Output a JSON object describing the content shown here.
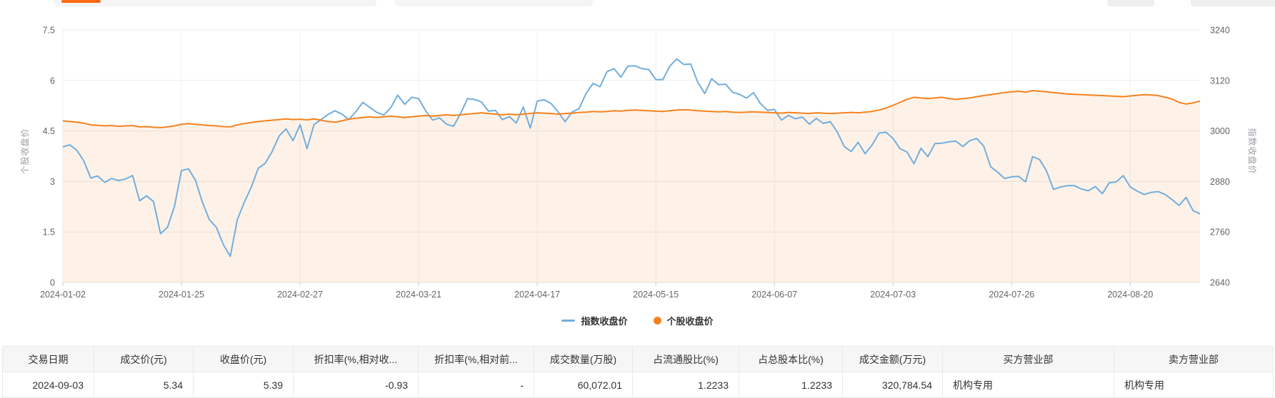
{
  "colors": {
    "index_line": "#72aede",
    "stock_line": "#f5821f",
    "stock_fill": "rgba(245,130,31,0.10)",
    "grid": "#ebebeb",
    "vgrid": "#f0f0f0",
    "axis_line": "#e0e0e0",
    "tick": "#cccccc",
    "tick_text": "#666666",
    "axis_title_text": "#9aa0a6",
    "active_tab": "#fa6a16"
  },
  "chart": {
    "left_axis": {
      "title": "个股收盘价",
      "min": 0,
      "max": 7.5,
      "ticks": [
        0,
        1.5,
        3,
        4.5,
        6,
        7.5
      ]
    },
    "right_axis": {
      "title": "指数收盘价",
      "min": 2640,
      "max": 3240,
      "ticks": [
        2640,
        2760,
        2880,
        3000,
        3120,
        3240
      ]
    },
    "legend": [
      {
        "label": "指数收盘价",
        "color": "#72aede",
        "marker": "line"
      },
      {
        "label": "个股收盘价",
        "color": "#f5821f",
        "marker": "circle"
      }
    ]
  },
  "chart_data": {
    "type": "line",
    "title": "",
    "left_ylim": [
      0,
      7.5
    ],
    "right_ylim": [
      2640,
      3240
    ],
    "x_tick_indices": [
      0,
      17,
      34,
      51,
      68,
      85,
      102,
      119,
      136,
      153
    ],
    "x_tick_labels": [
      "2024-01-02",
      "2024-01-25",
      "2024-02-27",
      "2024-03-21",
      "2024-04-17",
      "2024-05-15",
      "2024-06-07",
      "2024-07-03",
      "2024-07-26",
      "2024-08-20"
    ],
    "x": [
      "2024-01-02",
      "2024-01-03",
      "2024-01-04",
      "2024-01-05",
      "2024-01-08",
      "2024-01-09",
      "2024-01-10",
      "2024-01-11",
      "2024-01-12",
      "2024-01-15",
      "2024-01-16",
      "2024-01-17",
      "2024-01-18",
      "2024-01-19",
      "2024-01-22",
      "2024-01-23",
      "2024-01-24",
      "2024-01-25",
      "2024-01-26",
      "2024-01-29",
      "2024-01-30",
      "2024-01-31",
      "2024-02-01",
      "2024-02-02",
      "2024-02-05",
      "2024-02-06",
      "2024-02-07",
      "2024-02-08",
      "2024-02-19",
      "2024-02-20",
      "2024-02-21",
      "2024-02-22",
      "2024-02-23",
      "2024-02-26",
      "2024-02-27",
      "2024-02-28",
      "2024-02-29",
      "2024-03-01",
      "2024-03-04",
      "2024-03-05",
      "2024-03-06",
      "2024-03-07",
      "2024-03-08",
      "2024-03-11",
      "2024-03-12",
      "2024-03-13",
      "2024-03-14",
      "2024-03-15",
      "2024-03-18",
      "2024-03-19",
      "2024-03-20",
      "2024-03-21",
      "2024-03-22",
      "2024-03-25",
      "2024-03-26",
      "2024-03-27",
      "2024-03-28",
      "2024-03-29",
      "2024-04-01",
      "2024-04-02",
      "2024-04-03",
      "2024-04-08",
      "2024-04-09",
      "2024-04-10",
      "2024-04-11",
      "2024-04-12",
      "2024-04-15",
      "2024-04-16",
      "2024-04-17",
      "2024-04-18",
      "2024-04-19",
      "2024-04-22",
      "2024-04-23",
      "2024-04-24",
      "2024-04-25",
      "2024-04-26",
      "2024-04-29",
      "2024-04-30",
      "2024-05-06",
      "2024-05-07",
      "2024-05-08",
      "2024-05-09",
      "2024-05-10",
      "2024-05-13",
      "2024-05-14",
      "2024-05-15",
      "2024-05-16",
      "2024-05-17",
      "2024-05-20",
      "2024-05-21",
      "2024-05-22",
      "2024-05-23",
      "2024-05-24",
      "2024-05-27",
      "2024-05-28",
      "2024-05-29",
      "2024-05-30",
      "2024-05-31",
      "2024-06-03",
      "2024-06-04",
      "2024-06-05",
      "2024-06-06",
      "2024-06-07",
      "2024-06-11",
      "2024-06-12",
      "2024-06-13",
      "2024-06-14",
      "2024-06-17",
      "2024-06-18",
      "2024-06-19",
      "2024-06-20",
      "2024-06-21",
      "2024-06-24",
      "2024-06-25",
      "2024-06-26",
      "2024-06-27",
      "2024-06-28",
      "2024-07-01",
      "2024-07-02",
      "2024-07-03",
      "2024-07-04",
      "2024-07-05",
      "2024-07-08",
      "2024-07-09",
      "2024-07-10",
      "2024-07-11",
      "2024-07-12",
      "2024-07-15",
      "2024-07-16",
      "2024-07-17",
      "2024-07-18",
      "2024-07-19",
      "2024-07-22",
      "2024-07-23",
      "2024-07-24",
      "2024-07-25",
      "2024-07-26",
      "2024-07-29",
      "2024-07-30",
      "2024-07-31",
      "2024-08-01",
      "2024-08-02",
      "2024-08-05",
      "2024-08-06",
      "2024-08-07",
      "2024-08-08",
      "2024-08-09",
      "2024-08-12",
      "2024-08-13",
      "2024-08-14",
      "2024-08-15",
      "2024-08-16",
      "2024-08-19",
      "2024-08-20",
      "2024-08-21",
      "2024-08-22",
      "2024-08-23",
      "2024-08-26",
      "2024-08-27",
      "2024-08-28",
      "2024-08-29",
      "2024-08-30",
      "2024-09-02",
      "2024-09-03"
    ],
    "series": [
      {
        "name": "指数收盘价",
        "axis": "right",
        "color": "#72aede",
        "values": [
          2962,
          2967,
          2954,
          2929,
          2888,
          2893,
          2878,
          2887,
          2882,
          2886,
          2894,
          2834,
          2846,
          2832,
          2756,
          2771,
          2821,
          2906,
          2910,
          2883,
          2831,
          2789,
          2771,
          2730,
          2702,
          2789,
          2830,
          2866,
          2911,
          2923,
          2951,
          2988,
          3005,
          2977,
          3015,
          2958,
          3015,
          3027,
          3039,
          3048,
          3040,
          3027,
          3046,
          3068,
          3056,
          3044,
          3038,
          3055,
          3085,
          3063,
          3080,
          3077,
          3048,
          3026,
          3031,
          3016,
          3011,
          3041,
          3077,
          3075,
          3069,
          3047,
          3049,
          3027,
          3034,
          3019,
          3057,
          3007,
          3071,
          3074,
          3065,
          3045,
          3022,
          3045,
          3053,
          3089,
          3113,
          3105,
          3141,
          3148,
          3128,
          3154,
          3155,
          3148,
          3146,
          3122,
          3122,
          3154,
          3171,
          3158,
          3159,
          3116,
          3089,
          3124,
          3110,
          3111,
          3092,
          3087,
          3078,
          3091,
          3065,
          3049,
          3051,
          3026,
          3037,
          3029,
          3033,
          3016,
          3030,
          3018,
          3022,
          2998,
          2963,
          2951,
          2973,
          2946,
          2967,
          2995,
          2997,
          2982,
          2958,
          2950,
          2922,
          2959,
          2939,
          2970,
          2971,
          2974,
          2976,
          2963,
          2977,
          2982,
          2964,
          2915,
          2902,
          2887,
          2891,
          2892,
          2879,
          2939,
          2932,
          2905,
          2861,
          2867,
          2870,
          2870,
          2862,
          2858,
          2868,
          2851,
          2877,
          2879,
          2894,
          2867,
          2857,
          2849,
          2854,
          2856,
          2849,
          2837,
          2823,
          2842,
          2811,
          2803
        ]
      },
      {
        "name": "个股收盘价",
        "axis": "left",
        "color": "#f5821f",
        "fill": "rgba(245,130,31,0.10)",
        "values": [
          4.8,
          4.78,
          4.76,
          4.73,
          4.68,
          4.67,
          4.65,
          4.66,
          4.64,
          4.65,
          4.66,
          4.62,
          4.63,
          4.61,
          4.6,
          4.62,
          4.65,
          4.7,
          4.72,
          4.7,
          4.68,
          4.66,
          4.65,
          4.63,
          4.62,
          4.68,
          4.72,
          4.75,
          4.78,
          4.8,
          4.82,
          4.84,
          4.86,
          4.84,
          4.85,
          4.83,
          4.86,
          4.82,
          4.78,
          4.76,
          4.8,
          4.85,
          4.88,
          4.9,
          4.92,
          4.9,
          4.92,
          4.94,
          4.92,
          4.9,
          4.92,
          4.94,
          4.96,
          4.94,
          4.96,
          4.98,
          4.96,
          4.98,
          5.0,
          5.02,
          5.04,
          5.02,
          5.0,
          4.98,
          5.0,
          4.98,
          5.0,
          5.02,
          5.04,
          5.03,
          5.02,
          5.0,
          5.02,
          5.03,
          5.05,
          5.06,
          5.08,
          5.07,
          5.08,
          5.1,
          5.09,
          5.11,
          5.12,
          5.11,
          5.1,
          5.09,
          5.08,
          5.1,
          5.12,
          5.13,
          5.12,
          5.1,
          5.09,
          5.08,
          5.07,
          5.08,
          5.06,
          5.05,
          5.06,
          5.07,
          5.06,
          5.05,
          5.04,
          5.03,
          5.05,
          5.04,
          5.03,
          5.02,
          5.04,
          5.03,
          5.02,
          5.03,
          5.04,
          5.05,
          5.04,
          5.06,
          5.08,
          5.12,
          5.18,
          5.26,
          5.35,
          5.44,
          5.5,
          5.48,
          5.46,
          5.48,
          5.5,
          5.46,
          5.44,
          5.46,
          5.48,
          5.52,
          5.55,
          5.58,
          5.61,
          5.64,
          5.66,
          5.68,
          5.65,
          5.7,
          5.68,
          5.66,
          5.64,
          5.62,
          5.6,
          5.59,
          5.58,
          5.57,
          5.56,
          5.55,
          5.54,
          5.53,
          5.52,
          5.54,
          5.56,
          5.58,
          5.57,
          5.55,
          5.5,
          5.45,
          5.35,
          5.3,
          5.33,
          5.39
        ]
      }
    ]
  },
  "table": {
    "headers": [
      "交易日期",
      "成交价(元)",
      "收盘价(元)",
      "折扣率(%,相对收...",
      "折扣率(%,相对前...",
      "成交数量(万股)",
      "占流通股比(%)",
      "占总股本比(%)",
      "成交金额(万元)",
      "买方营业部",
      "卖方营业部"
    ],
    "aligns": [
      "right",
      "right",
      "right",
      "right",
      "right",
      "right",
      "right",
      "right",
      "right",
      "left",
      "left"
    ],
    "rows": [
      [
        "2024-09-03",
        "5.34",
        "5.39",
        "-0.93",
        "-",
        "60,072.01",
        "1.2233",
        "1.2233",
        "320,784.54",
        "机构专用",
        "机构专用"
      ]
    ]
  }
}
